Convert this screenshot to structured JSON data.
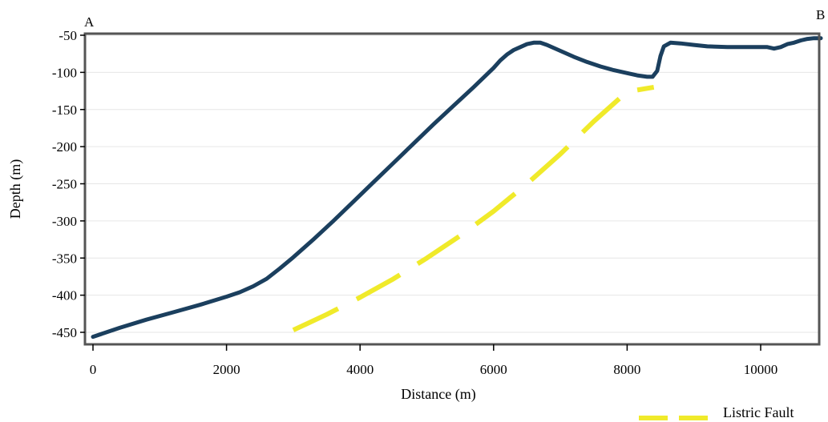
{
  "chart_data": {
    "type": "line",
    "xlabel": "Distance (m)",
    "ylabel": "Depth (m)",
    "xlim": [
      0,
      10900
    ],
    "ylim": [
      -457,
      -46
    ],
    "x_ticks": [
      0,
      2000,
      4000,
      6000,
      8000,
      10000
    ],
    "x_tick_labels": [
      "0",
      "2000",
      "4000",
      "6000",
      "8000",
      "10000"
    ],
    "y_ticks": [
      -50,
      -100,
      -150,
      -200,
      -250,
      -300,
      -350,
      -400,
      -450
    ],
    "y_tick_labels": [
      "-50",
      "-100",
      "-150",
      "-200",
      "-250",
      "-300",
      "-350",
      "-400",
      "-450"
    ],
    "grid": true,
    "legend_position": "bottom-right",
    "corner_labels": {
      "left": "A",
      "right": "B"
    },
    "colors": {
      "profile": "#1b3f5e",
      "fault": "#f0ea2a",
      "grid": "#e6e6e6",
      "frame": "#555555"
    },
    "series": [
      {
        "style": "solid",
        "x": [
          0,
          400,
          800,
          1200,
          1600,
          2000,
          2200,
          2400,
          2600,
          2800,
          3000,
          3300,
          3600,
          3900,
          4200,
          4500,
          4800,
          5100,
          5400,
          5700,
          6000,
          6100,
          6200,
          6300,
          6400,
          6500,
          6600,
          6700,
          6800,
          7000,
          7200,
          7400,
          7600,
          7800,
          8000,
          8150,
          8300,
          8380,
          8450,
          8500,
          8550,
          8650,
          8800,
          9000,
          9200,
          9500,
          9800,
          10100,
          10200,
          10300,
          10400,
          10500,
          10600,
          10700,
          10800,
          10900
        ],
        "y": [
          -456,
          -444,
          -433,
          -423,
          -413,
          -402,
          -396,
          -388,
          -378,
          -364,
          -349,
          -325,
          -300,
          -274,
          -248,
          -222,
          -196,
          -170,
          -145,
          -120,
          -94,
          -84,
          -76,
          -70,
          -66,
          -62,
          -60,
          -60,
          -63,
          -71,
          -79,
          -86,
          -92,
          -97,
          -101,
          -104,
          -106,
          -106,
          -98,
          -78,
          -65,
          -60,
          -61,
          -63,
          -65,
          -66,
          -66,
          -66,
          -68,
          -66,
          -62,
          -60,
          -57,
          -55,
          -54,
          -54
        ]
      },
      {
        "name": "Listric Fault",
        "style": "dashed",
        "x": [
          3000,
          3500,
          4000,
          4500,
          5000,
          5500,
          6000,
          6500,
          7000,
          7500,
          8000,
          8400
        ],
        "y": [
          -447,
          -426,
          -403,
          -378,
          -350,
          -320,
          -287,
          -250,
          -210,
          -166,
          -126,
          -120
        ]
      }
    ]
  }
}
